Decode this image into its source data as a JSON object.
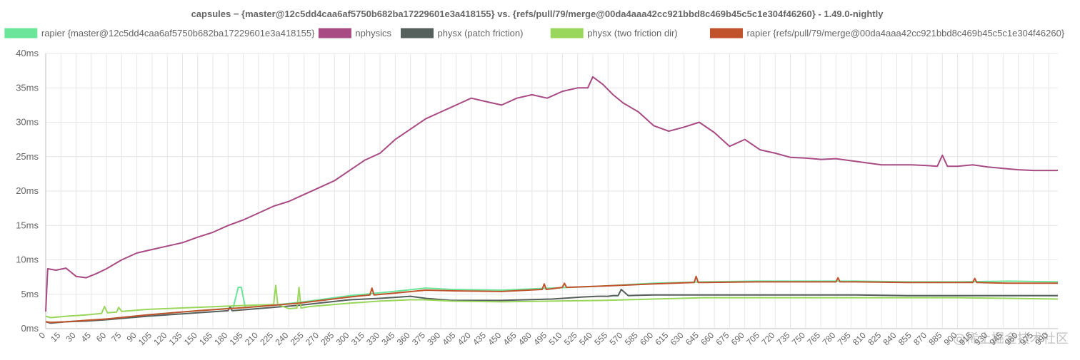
{
  "chart_data": {
    "type": "line",
    "title": "capsules − {master@12c5dd4caa6af5750b682ba17229601e3a418155} vs. {refs/pull/79/merge@00da4aaa42cc921bbd8c469b45c5c1e304f46260} - 1.49.0-nightly",
    "xlabel": "",
    "ylabel": "",
    "ylim": [
      0,
      40
    ],
    "y_ticks": [
      "0ms",
      "5ms",
      "10ms",
      "15ms",
      "20ms",
      "25ms",
      "30ms",
      "35ms",
      "40ms"
    ],
    "x_ticks": [
      0,
      15,
      30,
      45,
      60,
      75,
      90,
      105,
      120,
      135,
      150,
      165,
      180,
      195,
      210,
      225,
      240,
      255,
      270,
      285,
      300,
      315,
      330,
      345,
      360,
      375,
      390,
      405,
      420,
      435,
      450,
      465,
      480,
      495,
      510,
      525,
      540,
      555,
      570,
      585,
      600,
      615,
      630,
      645,
      660,
      675,
      690,
      705,
      720,
      735,
      750,
      765,
      780,
      795,
      810,
      825,
      840,
      855,
      870,
      885,
      900,
      915,
      930,
      945,
      960,
      975,
      990
    ],
    "xlim": [
      0,
      999
    ],
    "grid": true,
    "legend_position": "top",
    "series": [
      {
        "name": "rapier {master@12c5dd4caa6af5750b682ba17229601e3a418155}",
        "color": "#6be59a",
        "x": [
          0,
          5,
          20,
          40,
          60,
          100,
          150,
          185,
          190,
          193,
          197,
          210,
          250,
          300,
          330,
          350,
          375,
          400,
          450,
          500,
          550,
          600,
          650,
          700,
          750,
          800,
          850,
          900,
          950,
          999
        ],
        "values": [
          1.0,
          0.9,
          1.0,
          1.2,
          1.4,
          2.0,
          2.6,
          3.0,
          6.0,
          6.0,
          3.1,
          3.2,
          3.8,
          4.8,
          5.2,
          5.5,
          5.9,
          5.7,
          5.6,
          5.9,
          6.2,
          6.6,
          6.8,
          6.9,
          6.9,
          6.9,
          6.8,
          6.8,
          6.9,
          6.8
        ]
      },
      {
        "name": "nphysics",
        "color": "#a84a83",
        "x": [
          0,
          2,
          10,
          20,
          30,
          40,
          50,
          60,
          75,
          90,
          105,
          120,
          135,
          150,
          165,
          180,
          195,
          210,
          225,
          240,
          255,
          270,
          285,
          300,
          315,
          330,
          345,
          360,
          375,
          390,
          405,
          420,
          435,
          450,
          465,
          480,
          495,
          510,
          525,
          535,
          540,
          550,
          560,
          570,
          585,
          600,
          615,
          630,
          645,
          660,
          675,
          690,
          705,
          720,
          735,
          750,
          765,
          780,
          795,
          810,
          825,
          840,
          855,
          870,
          880,
          885,
          890,
          900,
          915,
          930,
          945,
          960,
          975,
          990,
          999
        ],
        "values": [
          2.5,
          8.7,
          8.5,
          8.8,
          7.6,
          7.4,
          8.0,
          8.7,
          10.0,
          11.0,
          11.5,
          12.0,
          12.5,
          13.3,
          14.0,
          15.0,
          15.8,
          16.8,
          17.8,
          18.5,
          19.5,
          20.5,
          21.5,
          23.0,
          24.5,
          25.5,
          27.5,
          29.0,
          30.5,
          31.5,
          32.5,
          33.5,
          33.0,
          32.5,
          33.5,
          34.0,
          33.5,
          34.5,
          35.0,
          35.0,
          36.6,
          35.5,
          34.0,
          32.8,
          31.5,
          29.5,
          28.7,
          29.3,
          30.0,
          28.5,
          26.5,
          27.5,
          26.0,
          25.5,
          24.9,
          24.8,
          24.6,
          24.7,
          24.4,
          24.1,
          23.8,
          23.8,
          23.8,
          23.7,
          23.6,
          25.2,
          23.6,
          23.6,
          23.8,
          23.5,
          23.3,
          23.1,
          23.0,
          23.0,
          23.0
        ]
      },
      {
        "name": "physx (patch friction)",
        "color": "#555f5c",
        "x": [
          0,
          5,
          20,
          40,
          60,
          100,
          150,
          180,
          182,
          184,
          200,
          250,
          300,
          330,
          350,
          360,
          375,
          400,
          450,
          500,
          530,
          545,
          555,
          560,
          565,
          568,
          575,
          600,
          650,
          700,
          750,
          800,
          850,
          900,
          950,
          999
        ],
        "values": [
          1.0,
          0.8,
          1.0,
          1.1,
          1.3,
          1.8,
          2.3,
          2.6,
          3.2,
          2.6,
          2.8,
          3.4,
          4.2,
          4.4,
          4.6,
          4.7,
          4.4,
          4.1,
          4.1,
          4.3,
          4.6,
          4.7,
          4.7,
          4.8,
          4.8,
          5.7,
          4.8,
          4.9,
          4.9,
          4.9,
          4.9,
          4.9,
          4.8,
          4.8,
          4.8,
          4.8
        ]
      },
      {
        "name": "physx (two friction dir)",
        "color": "#99d65c",
        "x": [
          0,
          5,
          20,
          40,
          55,
          58,
          61,
          70,
          72,
          75,
          100,
          150,
          200,
          225,
          227,
          229,
          240,
          248,
          250,
          252,
          260,
          300,
          330,
          360,
          375,
          400,
          450,
          500,
          550,
          600,
          650,
          700,
          750,
          800,
          850,
          900,
          950,
          999
        ],
        "values": [
          1.8,
          1.6,
          1.8,
          2.0,
          2.2,
          3.2,
          2.3,
          2.4,
          3.1,
          2.5,
          2.8,
          3.1,
          3.4,
          3.5,
          6.3,
          3.5,
          2.9,
          3.0,
          6.0,
          3.0,
          3.2,
          3.7,
          4.0,
          4.2,
          4.2,
          4.0,
          3.9,
          4.0,
          4.1,
          4.3,
          4.5,
          4.5,
          4.5,
          4.5,
          4.5,
          4.5,
          4.4,
          4.3
        ]
      },
      {
        "name": "rapier {refs/pull/79/merge@00da4aaa42cc921bbd8c469b45c5c1e304f46260}",
        "color": "#c0522c",
        "x": [
          0,
          5,
          20,
          40,
          60,
          100,
          150,
          200,
          250,
          300,
          320,
          322,
          324,
          340,
          375,
          400,
          450,
          490,
          492,
          494,
          500,
          510,
          512,
          514,
          550,
          600,
          640,
          642,
          644,
          650,
          700,
          750,
          780,
          782,
          784,
          800,
          850,
          900,
          915,
          917,
          919,
          950,
          999
        ],
        "values": [
          1.0,
          0.9,
          1.0,
          1.2,
          1.4,
          2.0,
          2.6,
          3.1,
          3.7,
          4.6,
          4.9,
          5.9,
          4.9,
          5.1,
          5.6,
          5.5,
          5.4,
          5.7,
          6.5,
          5.7,
          5.8,
          6.0,
          6.6,
          6.0,
          6.2,
          6.5,
          6.7,
          7.6,
          6.7,
          6.7,
          6.8,
          6.8,
          6.8,
          7.4,
          6.8,
          6.8,
          6.7,
          6.7,
          6.7,
          7.3,
          6.7,
          6.6,
          6.6
        ]
      }
    ]
  },
  "watermark_text": "@稀土掘金技术社区"
}
